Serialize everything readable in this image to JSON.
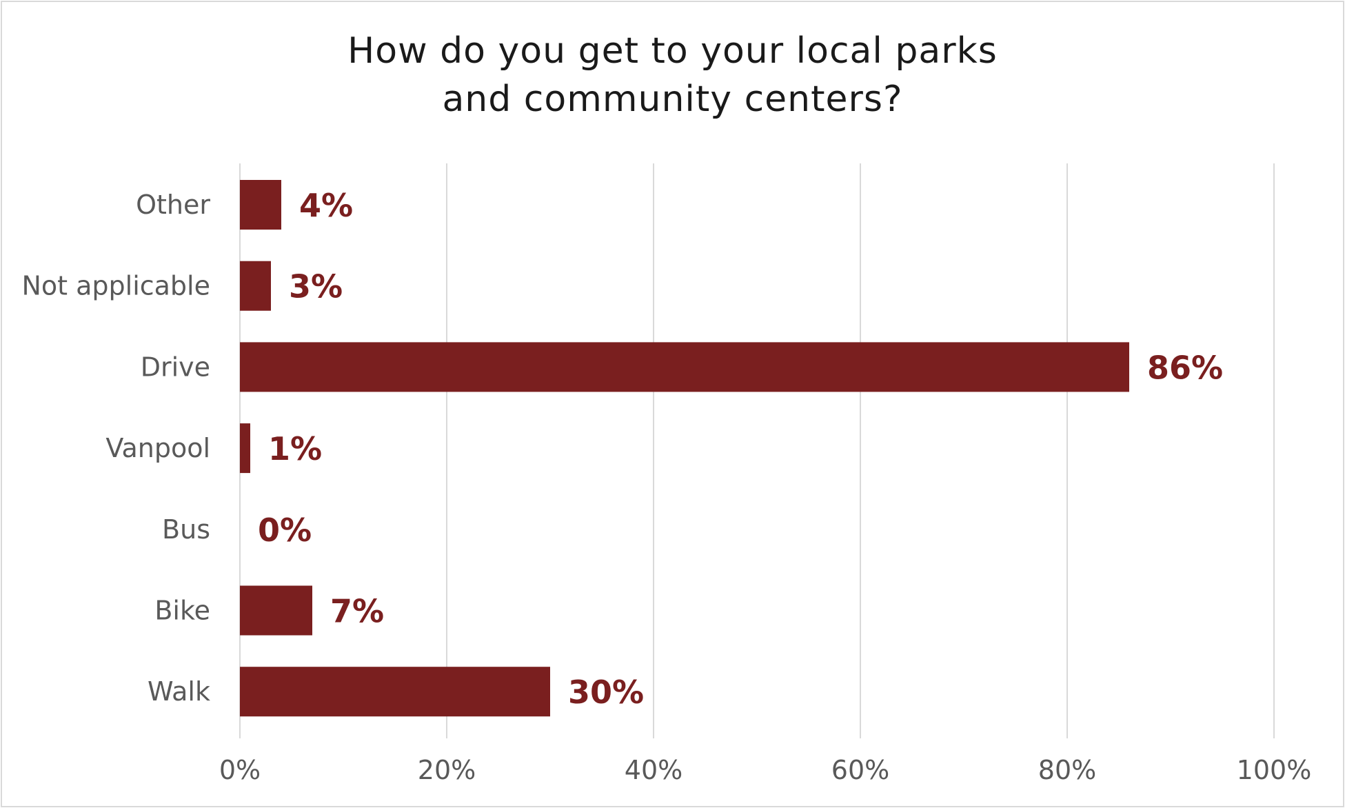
{
  "chart_data": {
    "type": "bar",
    "orientation": "horizontal",
    "title_lines": [
      "How do you get to your local parks",
      "and community centers?"
    ],
    "categories": [
      "Other",
      "Not applicable",
      "Drive",
      "Vanpool",
      "Bus",
      "Bike",
      "Walk"
    ],
    "values": [
      4,
      3,
      86,
      1,
      0,
      7,
      30
    ],
    "value_labels": [
      "4%",
      "3%",
      "86%",
      "1%",
      "0%",
      "7%",
      "30%"
    ],
    "xticks": [
      0,
      20,
      40,
      60,
      80,
      100
    ],
    "xtick_labels": [
      "0%",
      "20%",
      "40%",
      "60%",
      "80%",
      "100%"
    ],
    "xlim": [
      0,
      100
    ],
    "grid": "vertical",
    "legend": "none",
    "bar_color": "#7a1f1f",
    "grid_color": "#d9d9d9",
    "label_color": "#595959"
  }
}
